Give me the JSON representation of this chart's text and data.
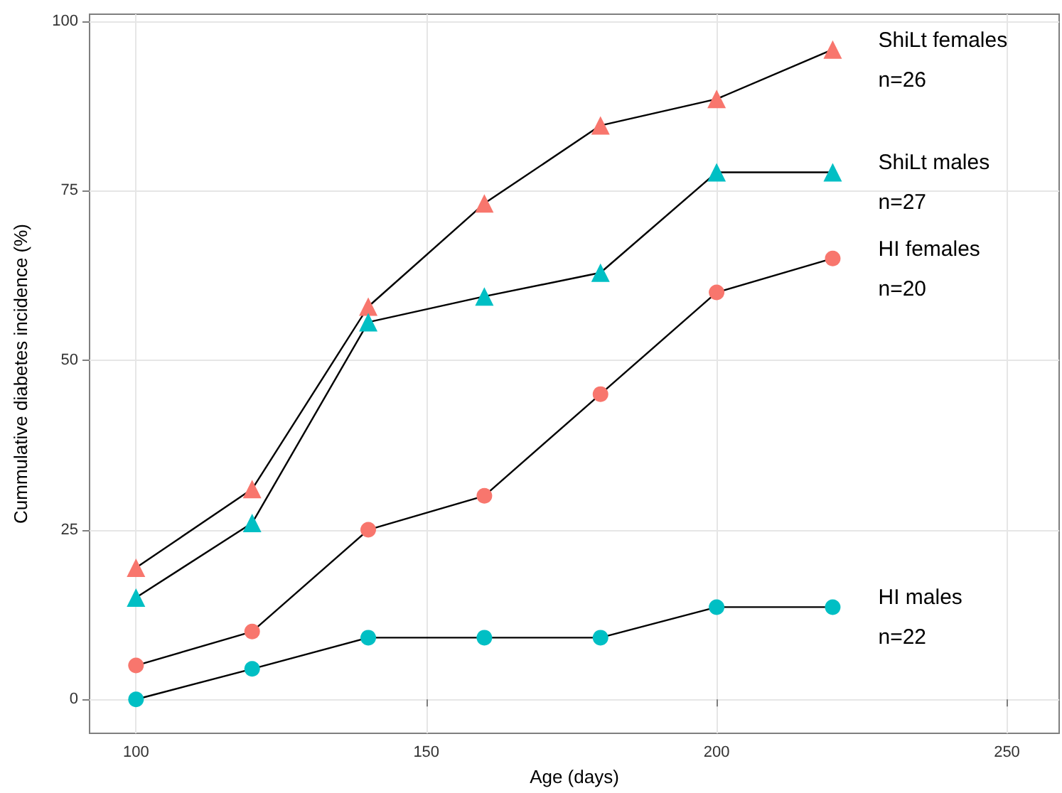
{
  "chart_data": {
    "type": "line",
    "xlabel": "Age (days)",
    "ylabel": "Cummulative diabetes incidence (%)",
    "x": [
      100,
      120,
      140,
      160,
      180,
      200,
      220
    ],
    "series": [
      {
        "name": "ShiLt females",
        "color": "#f8766d",
        "marker": "triangle",
        "values": [
          19.4,
          31,
          57.9,
          73.1,
          84.6,
          88.5,
          95.8
        ]
      },
      {
        "name": "ShiLt males",
        "color": "#00bfc4",
        "marker": "triangle",
        "values": [
          15,
          26,
          55.6,
          59.4,
          62.9,
          77.7,
          77.7
        ]
      },
      {
        "name": "HI females",
        "color": "#f8766d",
        "marker": "circle",
        "values": [
          5,
          10,
          25,
          30,
          45,
          60,
          65
        ]
      },
      {
        "name": "HI males",
        "color": "#00bfc4",
        "marker": "circle",
        "values": [
          0,
          4.5,
          9.1,
          9.1,
          9.1,
          13.6,
          13.6
        ]
      }
    ],
    "annotations": [
      "n=26",
      "n=27",
      "n=20",
      "n=22"
    ],
    "xlim": [
      92,
      259
    ],
    "xticks": [
      100,
      150,
      200,
      250
    ],
    "ylim": [
      -5,
      101
    ],
    "yticks": [
      0,
      25,
      50,
      75,
      100
    ],
    "grid": true
  }
}
